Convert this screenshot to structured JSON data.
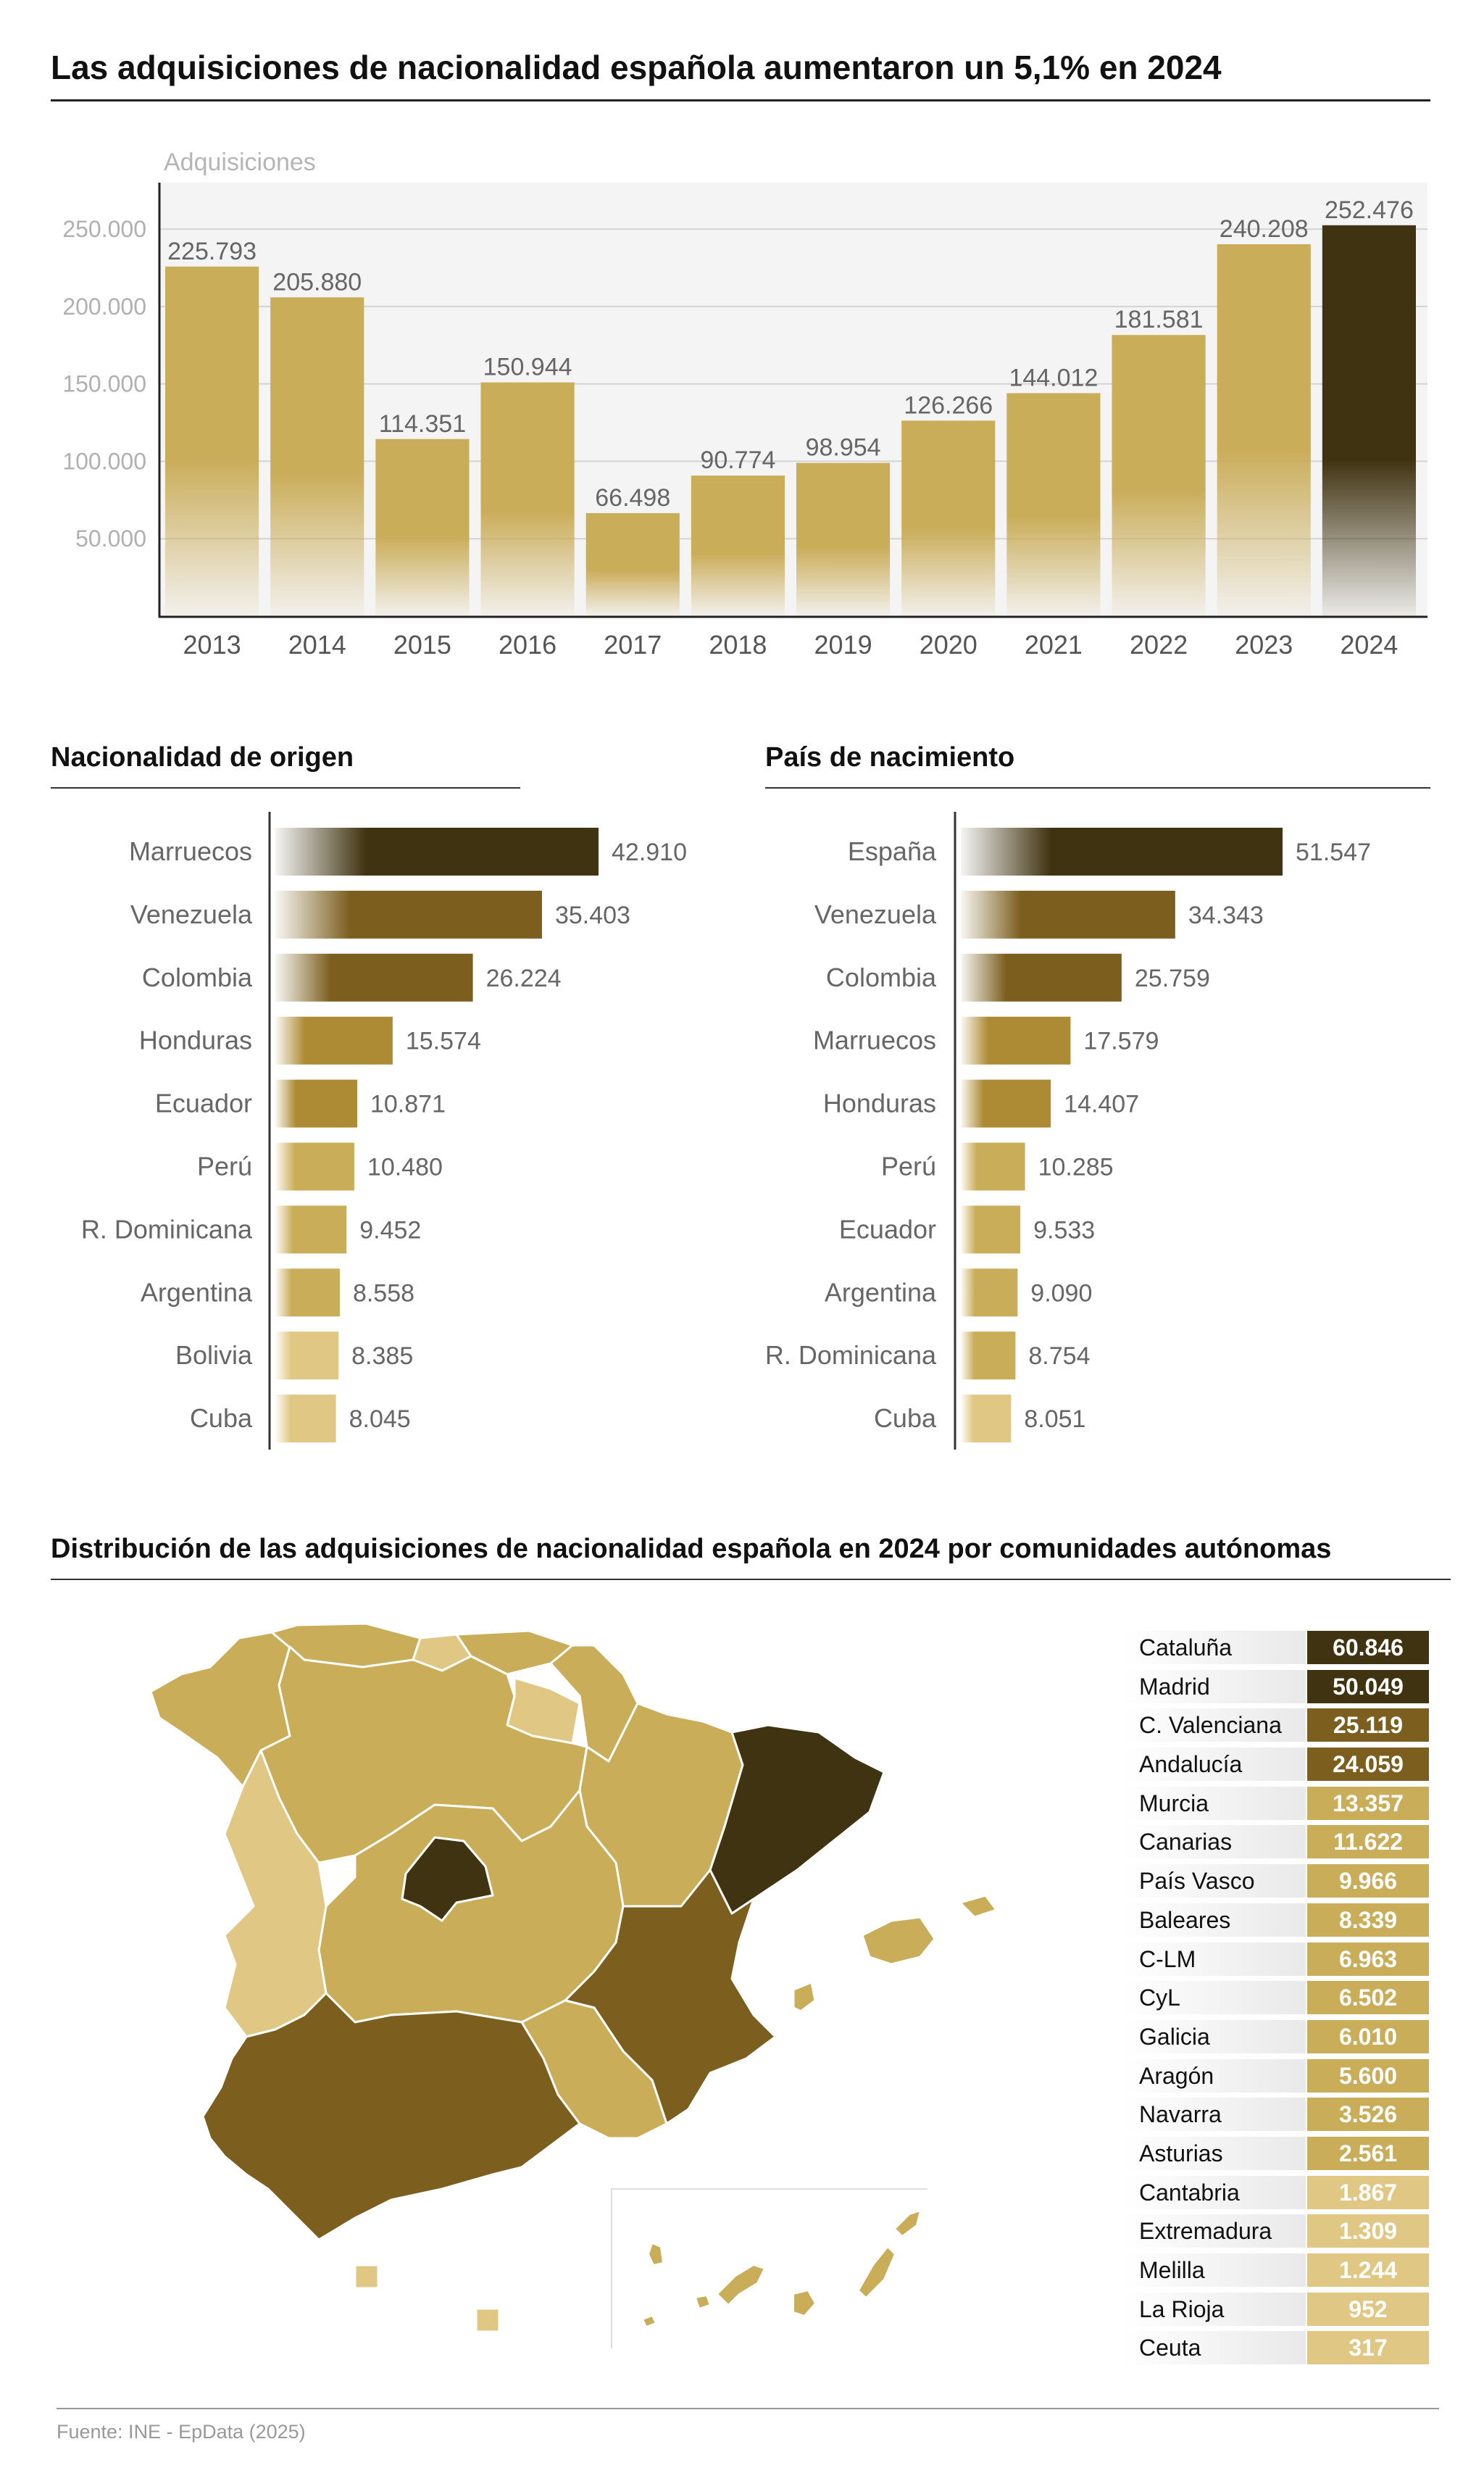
{
  "main_title": "Las adquisiciones de nacionalidad española aumentaron un 5,1% en 2024",
  "colors": {
    "dark": "#403311",
    "mid_dark": "#7c5f1f",
    "mid": "#ad8b34",
    "base": "#caad59",
    "light": "#e0c884",
    "panel_bg": "#f4f4f4"
  },
  "chart_data": [
    {
      "type": "bar",
      "title": "",
      "ylabel": "Adquisiciones",
      "categories": [
        "2013",
        "2014",
        "2015",
        "2016",
        "2017",
        "2018",
        "2019",
        "2020",
        "2021",
        "2022",
        "2023",
        "2024"
      ],
      "values": [
        225793,
        205880,
        114351,
        150944,
        66498,
        90774,
        98954,
        126266,
        144012,
        181581,
        240208,
        252476
      ],
      "value_labels": [
        "225.793",
        "205.880",
        "114.351",
        "150.944",
        "66.498",
        "90.774",
        "98.954",
        "126.266",
        "144.012",
        "181.581",
        "240.208",
        "252.476"
      ],
      "ylim": [
        0,
        280000
      ],
      "yticks": [
        50000,
        100000,
        150000,
        200000,
        250000
      ],
      "ytick_labels": [
        "50.000",
        "100.000",
        "150.000",
        "200.000",
        "250.000"
      ],
      "grid": true,
      "highlight": "2024"
    },
    {
      "type": "bar",
      "orientation": "horizontal",
      "title": "Nacionalidad de origen",
      "categories": [
        "Marruecos",
        "Venezuela",
        "Colombia",
        "Honduras",
        "Ecuador",
        "Perú",
        "R. Dominicana",
        "Argentina",
        "Bolivia",
        "Cuba"
      ],
      "values": [
        42910,
        35403,
        26224,
        15574,
        10871,
        10480,
        9452,
        8558,
        8385,
        8045
      ],
      "value_labels": [
        "42.910",
        "35.403",
        "26.224",
        "15.574",
        "10.871",
        "10.480",
        "9.452",
        "8.558",
        "8.385",
        "8.045"
      ]
    },
    {
      "type": "bar",
      "orientation": "horizontal",
      "title": "País de nacimiento",
      "categories": [
        "España",
        "Venezuela",
        "Colombia",
        "Marruecos",
        "Honduras",
        "Perú",
        "Ecuador",
        "Argentina",
        "R. Dominicana",
        "Cuba"
      ],
      "values": [
        51547,
        34343,
        25759,
        17579,
        14407,
        10285,
        9533,
        9090,
        8754,
        8051
      ],
      "value_labels": [
        "51.547",
        "34.343",
        "25.759",
        "17.579",
        "14.407",
        "10.285",
        "9.533",
        "9.090",
        "8.754",
        "8.051"
      ]
    },
    {
      "type": "table",
      "title": "Distribución de las adquisiciones de nacionalidad española en 2024 por comunidades autónomas",
      "categories": [
        "Cataluña",
        "Madrid",
        "C. Valenciana",
        "Andalucía",
        "Murcia",
        "Canarias",
        "País Vasco",
        "Baleares",
        "C-LM",
        "CyL",
        "Galicia",
        "Aragón",
        "Navarra",
        "Asturias",
        "Cantabria",
        "Extremadura",
        "Melilla",
        "La Rioja",
        "Ceuta"
      ],
      "values": [
        60846,
        50049,
        25119,
        24059,
        13357,
        11622,
        9966,
        8339,
        6963,
        6502,
        6010,
        5600,
        3526,
        2561,
        1867,
        1309,
        1244,
        952,
        317
      ],
      "value_labels": [
        "60.846",
        "50.049",
        "25.119",
        "24.059",
        "13.357",
        "11.622",
        "9.966",
        "8.339",
        "6.963",
        "6.502",
        "6.010",
        "5.600",
        "3.526",
        "2.561",
        "1.867",
        "1.309",
        "1.244",
        "952",
        "317"
      ]
    }
  ],
  "source": "Fuente: INE - EpData (2025)"
}
